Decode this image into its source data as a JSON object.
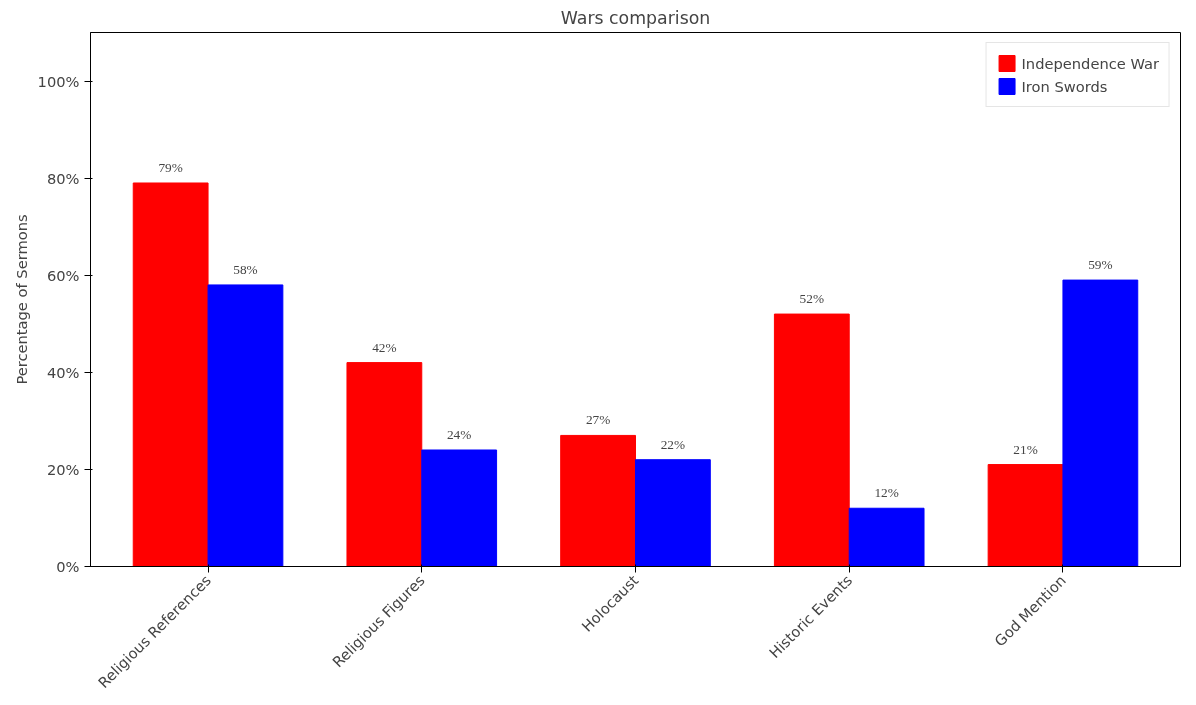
{
  "chart_data": {
    "type": "bar",
    "title": "Wars comparison",
    "ylabel": "Percentage of Sermons",
    "categories": [
      "Religious References",
      "Religious Figures",
      "Holocaust",
      "Historic Events",
      "God Mention"
    ],
    "series": [
      {
        "name": "Independence War",
        "color": "#ff0000",
        "values": [
          79,
          42,
          27,
          52,
          21
        ],
        "value_labels": [
          "79%",
          "42%",
          "27%",
          "52%",
          "21%"
        ]
      },
      {
        "name": "Iron Swords",
        "color": "#0000ff",
        "values": [
          58,
          24,
          22,
          12,
          59
        ],
        "value_labels": [
          "58%",
          "24%",
          "22%",
          "12%",
          "59%"
        ]
      }
    ],
    "ylim": [
      0,
      110
    ],
    "yticks": [
      {
        "value": 0,
        "label": "0%"
      },
      {
        "value": 20,
        "label": "20%"
      },
      {
        "value": 40,
        "label": "40%"
      },
      {
        "value": 60,
        "label": "60%"
      },
      {
        "value": 80,
        "label": "80%"
      },
      {
        "value": 100,
        "label": "100%"
      }
    ],
    "grid": false,
    "legend": "top right"
  }
}
